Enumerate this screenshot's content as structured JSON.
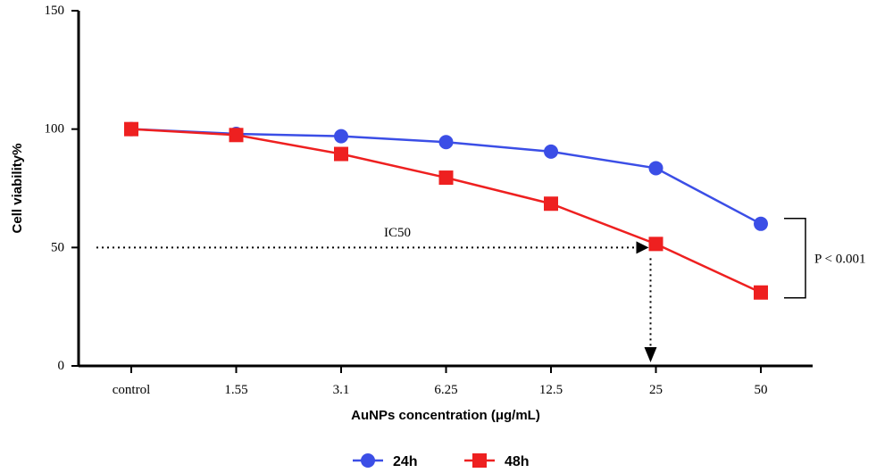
{
  "chart_data": {
    "type": "line",
    "title": "",
    "xlabel": "AuNPs concentration (μg/mL)",
    "ylabel": "Cell viability%",
    "categories": [
      "control",
      "1.55",
      "3.1",
      "6.25",
      "12.5",
      "25",
      "50"
    ],
    "ylim": [
      0,
      150
    ],
    "yticks": [
      "0",
      "50",
      "100",
      "150"
    ],
    "grid": false,
    "legend_position": "bottom",
    "series": [
      {
        "name": "24h",
        "marker": "circle",
        "color": "#3b4ee6",
        "values": [
          100,
          98,
          97,
          94.5,
          90.5,
          83.5,
          60
        ]
      },
      {
        "name": "48h",
        "marker": "square",
        "color": "#ee2020",
        "values": [
          100,
          97.5,
          89.5,
          79.5,
          68.5,
          51.5,
          31
        ]
      }
    ],
    "annotations": {
      "ic50_label": "IC50",
      "ic50_value": 50,
      "ic50_category": "25",
      "significance": "P < 0.001"
    }
  }
}
